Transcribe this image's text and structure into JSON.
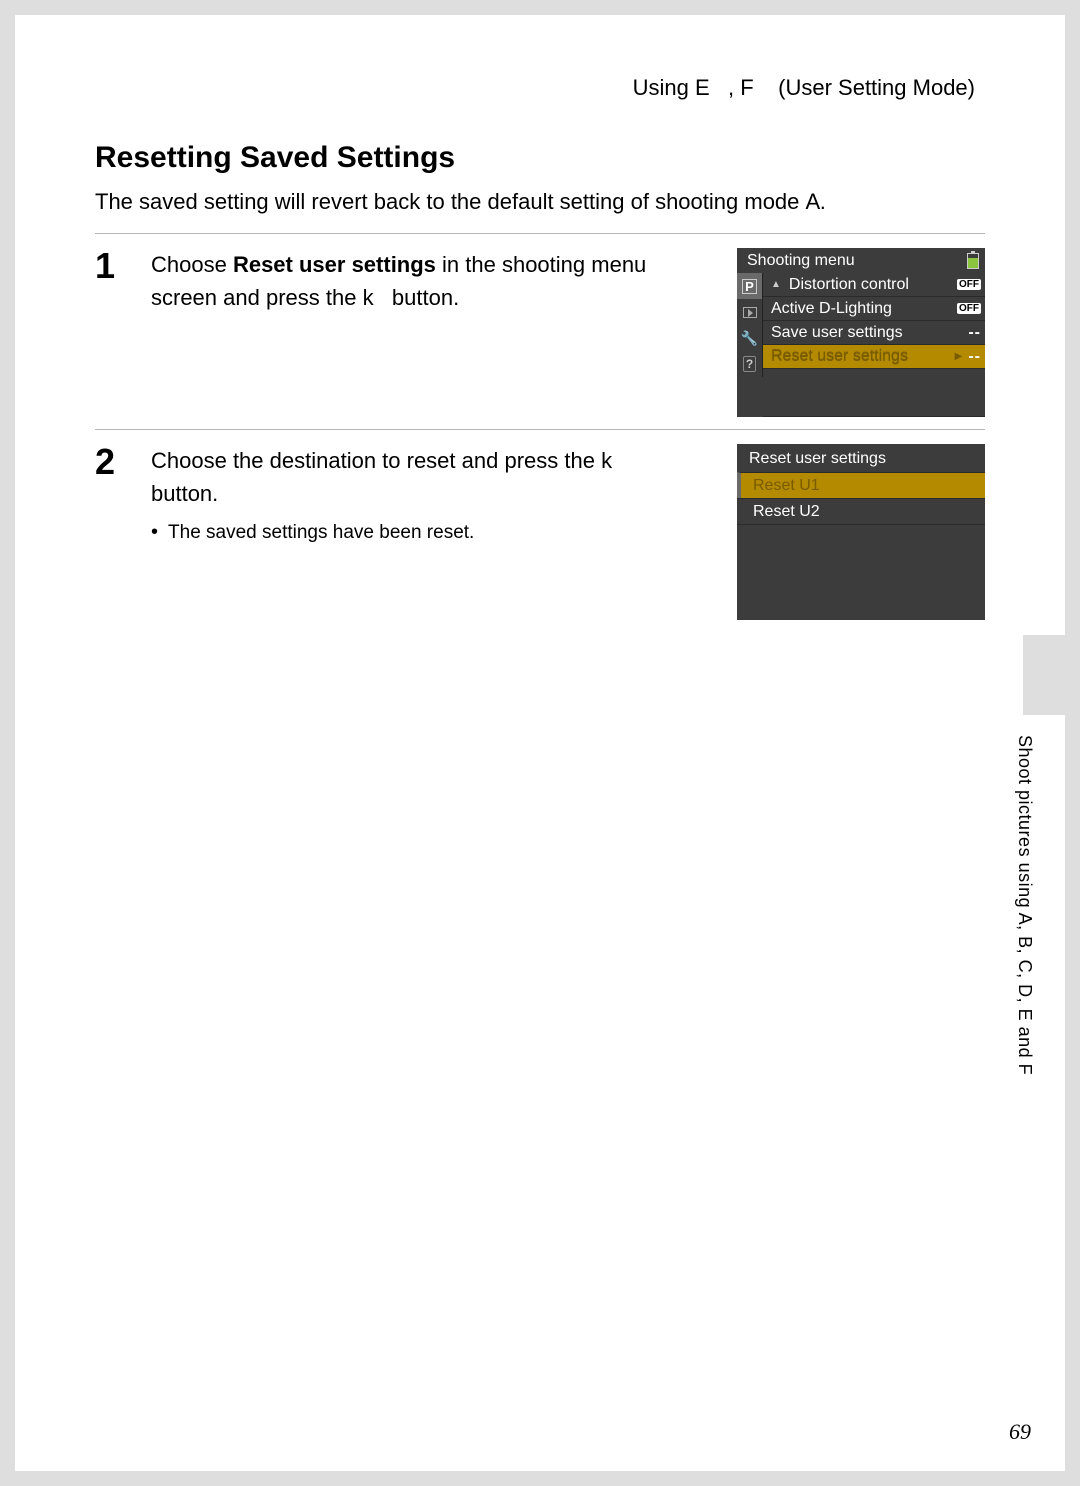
{
  "header": {
    "text_left": "Using",
    "mode1": "E",
    "sep": ",",
    "mode2": "F",
    "text_right": "(User Setting Mode)"
  },
  "section": {
    "title": "Resetting Saved Settings",
    "intro_pre": "The saved setting will revert back to the default setting of shooting mode ",
    "intro_mode": "A",
    "intro_post": "."
  },
  "steps": [
    {
      "num": "1",
      "line1_pre": "Choose ",
      "line1_bold": "Reset user settings",
      "line1_post": " in the shooting menu screen and press the ",
      "line1_btn": "k",
      "line1_end": " button."
    },
    {
      "num": "2",
      "line1_pre": "Choose the destination to reset and press the ",
      "line1_btn": "k",
      "line1_end": " button.",
      "bullet": "The saved settings have been reset."
    }
  ],
  "camui1": {
    "title": "Shooting menu",
    "rows": [
      {
        "label": "Distortion control",
        "value": "OFF",
        "value_type": "badge",
        "arrow_up": true
      },
      {
        "label": "Active D-Lighting",
        "value": "OFF",
        "value_type": "badge"
      },
      {
        "label": "Save user settings",
        "value": "--",
        "value_type": "dashes"
      },
      {
        "label": "Reset user settings",
        "value": "--",
        "value_type": "dashes",
        "selected": true,
        "arrow_right": true
      }
    ],
    "colors": {
      "bg": "#3c3c3c",
      "sel_bg": "#b38a00",
      "sel_text": "#7a5c00",
      "badge_bg": "#ffffff",
      "badge_text": "#000000"
    }
  },
  "camui2": {
    "title": "Reset user settings",
    "options": [
      {
        "label": "Reset U1",
        "selected": true
      },
      {
        "label": "Reset U2"
      }
    ]
  },
  "side_text": "Shoot pictures using A, B, C, D, E  and F",
  "page_number": "69"
}
